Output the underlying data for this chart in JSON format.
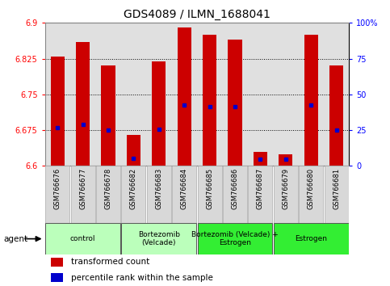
{
  "title": "GDS4089 / ILMN_1688041",
  "samples": [
    "GSM766676",
    "GSM766677",
    "GSM766678",
    "GSM766682",
    "GSM766683",
    "GSM766684",
    "GSM766685",
    "GSM766686",
    "GSM766687",
    "GSM766679",
    "GSM766680",
    "GSM766681"
  ],
  "bar_values": [
    6.83,
    6.86,
    6.81,
    6.665,
    6.82,
    6.89,
    6.875,
    6.865,
    6.63,
    6.625,
    6.875,
    6.81
  ],
  "percentile_values": [
    6.68,
    6.687,
    6.675,
    6.615,
    6.677,
    6.728,
    6.725,
    6.724,
    6.614,
    6.614,
    6.728,
    6.675
  ],
  "ylim_left": [
    6.6,
    6.9
  ],
  "ylim_right": [
    0,
    100
  ],
  "yticks_left": [
    6.6,
    6.675,
    6.75,
    6.825,
    6.9
  ],
  "yticks_right": [
    0,
    25,
    50,
    75,
    100
  ],
  "ytick_labels_left": [
    "6.6",
    "6.675",
    "6.75",
    "6.825",
    "6.9"
  ],
  "ytick_labels_right": [
    "0",
    "25",
    "50",
    "75",
    "100%"
  ],
  "bar_color": "#cc0000",
  "percentile_color": "#0000cc",
  "bar_width": 0.55,
  "background_color": "#ffffff",
  "plot_bg_color": "#e0e0e0",
  "group_spans": [
    {
      "start": 0,
      "end": 2,
      "label": "control",
      "color": "#bbffbb"
    },
    {
      "start": 3,
      "end": 5,
      "label": "Bortezomib\n(Velcade)",
      "color": "#bbffbb"
    },
    {
      "start": 6,
      "end": 8,
      "label": "Bortezomib (Velcade) +\nEstrogen",
      "color": "#33ee33"
    },
    {
      "start": 9,
      "end": 11,
      "label": "Estrogen",
      "color": "#33ee33"
    }
  ],
  "legend_items": [
    {
      "label": "transformed count",
      "color": "#cc0000"
    },
    {
      "label": "percentile rank within the sample",
      "color": "#0000cc"
    }
  ]
}
